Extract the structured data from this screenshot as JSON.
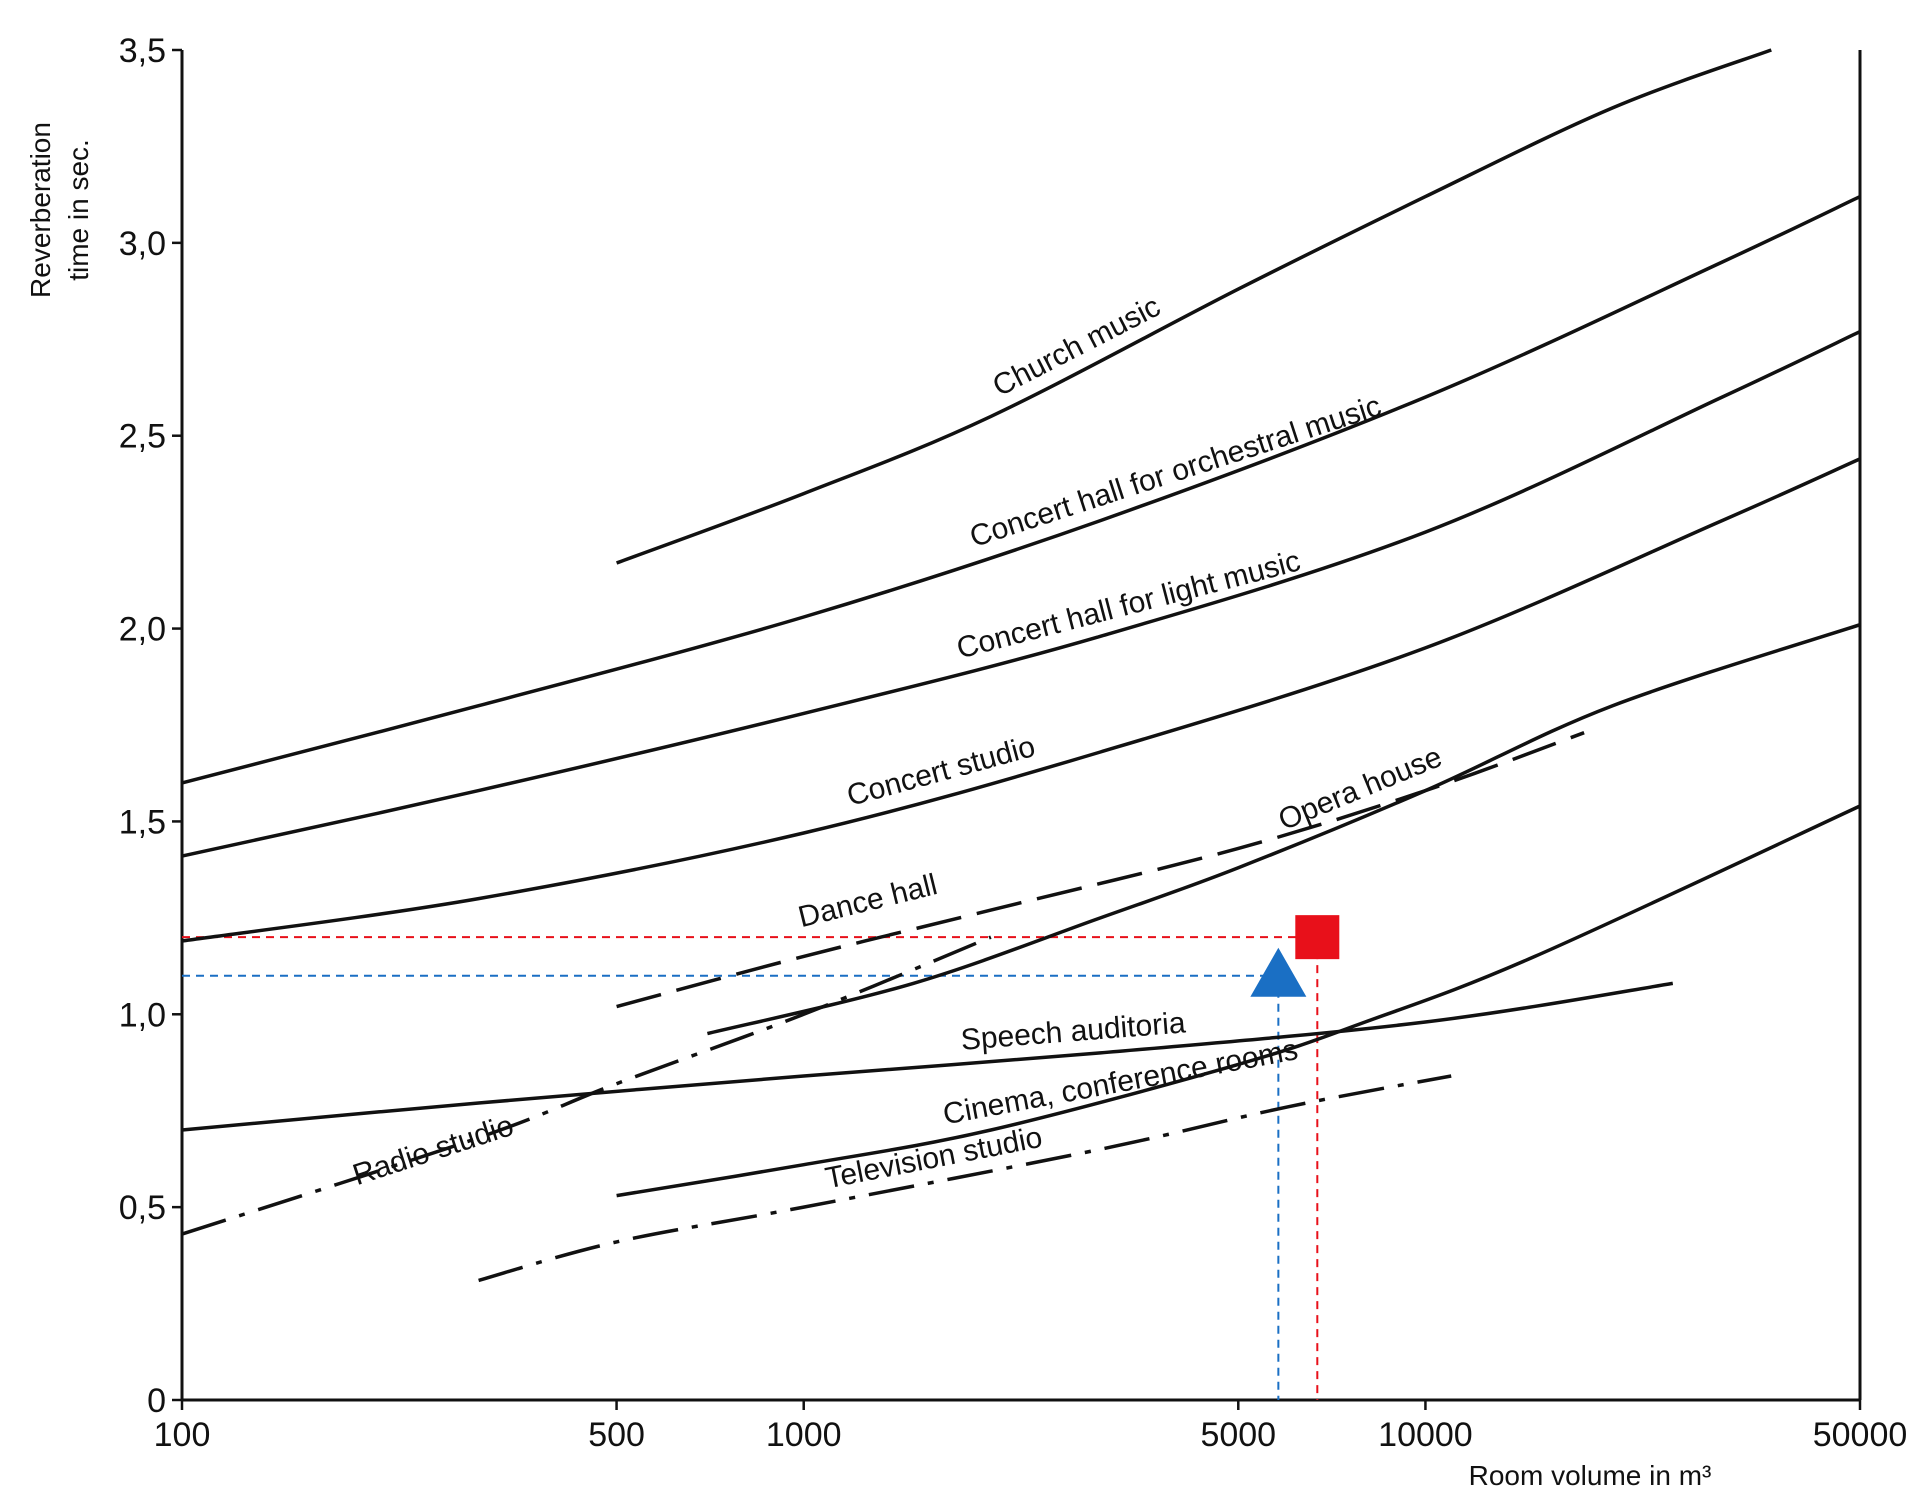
{
  "chart_data": {
    "type": "line",
    "title": "",
    "xlabel": "Room volume in m³",
    "ylabel": "Reverberation time in sec.",
    "ylabel_lines": [
      "Reverberation",
      "time in sec."
    ],
    "x_scale": "log",
    "xlim": [
      100,
      50000
    ],
    "ylim": [
      0,
      3.5
    ],
    "grid": false,
    "x_ticks": [
      {
        "value": 100,
        "label": "100"
      },
      {
        "value": 500,
        "label": "500"
      },
      {
        "value": 1000,
        "label": "1000"
      },
      {
        "value": 5000,
        "label": "5000"
      },
      {
        "value": 10000,
        "label": "10000"
      },
      {
        "value": 50000,
        "label": "50000"
      }
    ],
    "y_ticks": [
      {
        "value": 0,
        "label": "0"
      },
      {
        "value": 0.5,
        "label": "0,5"
      },
      {
        "value": 1.0,
        "label": "1,0"
      },
      {
        "value": 1.5,
        "label": "1,5"
      },
      {
        "value": 2.0,
        "label": "2,0"
      },
      {
        "value": 2.5,
        "label": "2,5"
      },
      {
        "value": 3.0,
        "label": "3,0"
      },
      {
        "value": 3.5,
        "label": "3,5"
      }
    ],
    "series": [
      {
        "name": "Church music",
        "style": "solid",
        "x": [
          500,
          1000,
          2000,
          5000,
          10000,
          20000,
          36000
        ],
        "y": [
          2.17,
          2.35,
          2.55,
          2.88,
          3.12,
          3.35,
          3.5
        ]
      },
      {
        "name": "Concert hall for orchestral music",
        "style": "solid",
        "x": [
          100,
          300,
          1000,
          3000,
          10000,
          30000,
          50000
        ],
        "y": [
          1.6,
          1.8,
          2.03,
          2.28,
          2.6,
          2.95,
          3.12
        ]
      },
      {
        "name": "Concert hall for light music",
        "style": "solid",
        "x": [
          100,
          300,
          1000,
          3000,
          10000,
          30000,
          50000
        ],
        "y": [
          1.41,
          1.58,
          1.78,
          1.98,
          2.25,
          2.6,
          2.77
        ]
      },
      {
        "name": "Concert studio",
        "style": "solid",
        "x": [
          100,
          300,
          1000,
          3000,
          10000,
          30000,
          50000
        ],
        "y": [
          1.19,
          1.3,
          1.47,
          1.68,
          1.95,
          2.28,
          2.44
        ]
      },
      {
        "name": "Opera house",
        "style": "solid",
        "x": [
          700,
          1500,
          3000,
          5000,
          10000,
          20000,
          50000
        ],
        "y": [
          0.95,
          1.08,
          1.25,
          1.38,
          1.58,
          1.8,
          2.01
        ]
      },
      {
        "name": "Dance hall",
        "style": "dashed",
        "x": [
          500,
          1000,
          2000,
          5000,
          10000,
          18000
        ],
        "y": [
          1.02,
          1.15,
          1.27,
          1.43,
          1.58,
          1.73
        ]
      },
      {
        "name": "Speech auditoria",
        "style": "solid",
        "x": [
          100,
          300,
          1000,
          3000,
          10000,
          25000
        ],
        "y": [
          0.7,
          0.77,
          0.84,
          0.9,
          0.98,
          1.08
        ]
      },
      {
        "name": "Radio studio",
        "style": "dash-dot",
        "x": [
          100,
          300,
          500,
          1000,
          2000
        ],
        "y": [
          0.43,
          0.68,
          0.82,
          1.0,
          1.2
        ]
      },
      {
        "name": "Cinema, conference rooms",
        "style": "solid",
        "x": [
          500,
          1000,
          2000,
          5000,
          8000,
          15000,
          50000
        ],
        "y": [
          0.53,
          0.61,
          0.7,
          0.87,
          0.98,
          1.15,
          1.54
        ]
      },
      {
        "name": "Television studio",
        "style": "dash-dot",
        "x": [
          300,
          500,
          1000,
          3000,
          6000,
          11000
        ],
        "y": [
          0.31,
          0.41,
          0.5,
          0.65,
          0.76,
          0.84
        ]
      }
    ],
    "markers": [
      {
        "shape": "triangle",
        "color": "#1a6fc4",
        "x": 5800,
        "y": 1.1
      },
      {
        "shape": "square",
        "color": "#e8101a",
        "x": 6700,
        "y": 1.2
      }
    ]
  }
}
